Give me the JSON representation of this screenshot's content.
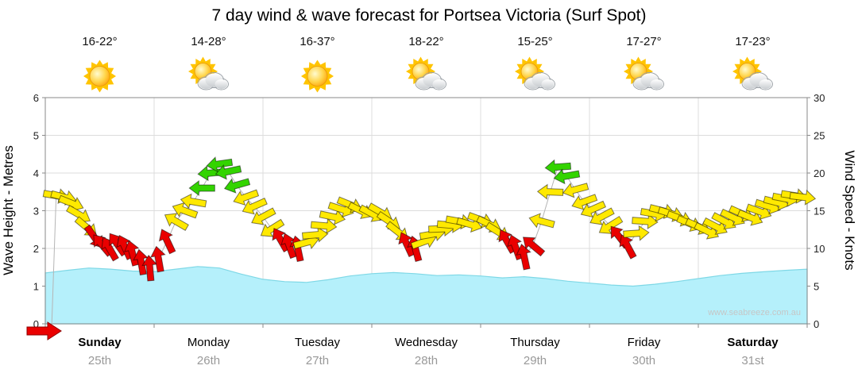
{
  "title": "7 day wind & wave forecast for Portsea Victoria (Surf Spot)",
  "watermark": "www.seabreeze.com.au",
  "chart_data": {
    "type": "area+wind-arrows",
    "y_left": {
      "label": "Wave Height - Metres",
      "min": 0,
      "max": 6,
      "ticks": [
        0,
        1,
        2,
        3,
        4,
        5,
        6
      ]
    },
    "y_right": {
      "label": "Wind Speed - Knots",
      "min": 0,
      "max": 30,
      "ticks": [
        0,
        5,
        10,
        15,
        20,
        25,
        30
      ]
    },
    "days": [
      {
        "name": "Sunday",
        "date": "25th",
        "temp": "16-22°",
        "icon": "sunny",
        "weekend": true
      },
      {
        "name": "Monday",
        "date": "26th",
        "temp": "14-28°",
        "icon": "partly-cloudy",
        "weekend": false
      },
      {
        "name": "Tuesday",
        "date": "27th",
        "temp": "16-37°",
        "icon": "sunny",
        "weekend": false
      },
      {
        "name": "Wednesday",
        "date": "28th",
        "temp": "18-22°",
        "icon": "partly-cloudy",
        "weekend": false
      },
      {
        "name": "Thursday",
        "date": "29th",
        "temp": "15-25°",
        "icon": "partly-cloudy",
        "weekend": false
      },
      {
        "name": "Friday",
        "date": "30th",
        "temp": "17-27°",
        "icon": "partly-cloudy",
        "weekend": false
      },
      {
        "name": "Saturday",
        "date": "31st",
        "temp": "17-23°",
        "icon": "partly-cloudy",
        "weekend": true
      }
    ],
    "wave_height_m": {
      "x_days": [
        0,
        0.2,
        0.4,
        0.6,
        0.8,
        1.0,
        1.2,
        1.4,
        1.6,
        1.8,
        2.0,
        2.2,
        2.4,
        2.6,
        2.8,
        3.0,
        3.2,
        3.4,
        3.6,
        3.8,
        4.0,
        4.2,
        4.4,
        4.6,
        4.8,
        5.0,
        5.2,
        5.4,
        5.6,
        5.8,
        6.0,
        6.2,
        6.4,
        6.6,
        6.8,
        7.0
      ],
      "y_m": [
        1.35,
        1.42,
        1.48,
        1.45,
        1.4,
        1.38,
        1.45,
        1.52,
        1.48,
        1.32,
        1.18,
        1.12,
        1.1,
        1.17,
        1.27,
        1.33,
        1.36,
        1.33,
        1.28,
        1.3,
        1.27,
        1.22,
        1.25,
        1.2,
        1.13,
        1.08,
        1.03,
        1.0,
        1.05,
        1.12,
        1.2,
        1.28,
        1.34,
        1.38,
        1.42,
        1.45
      ]
    },
    "wind_arrows": [
      {
        "d": 0.1,
        "kn": 17.0,
        "dir": 100,
        "c": "yellow"
      },
      {
        "d": 0.17,
        "kn": 16.8,
        "dir": 105,
        "c": "yellow"
      },
      {
        "d": 0.24,
        "kn": 16.0,
        "dir": 112,
        "c": "yellow"
      },
      {
        "d": 0.31,
        "kn": 14.5,
        "dir": 120,
        "c": "yellow"
      },
      {
        "d": 0.38,
        "kn": 12.8,
        "dir": 130,
        "c": "yellow"
      },
      {
        "d": 0.45,
        "kn": 11.5,
        "dir": 145,
        "c": "red"
      },
      {
        "d": 0.52,
        "kn": 10.5,
        "dir": 320,
        "c": "red"
      },
      {
        "d": 0.59,
        "kn": 10.0,
        "dir": 330,
        "c": "red"
      },
      {
        "d": 0.66,
        "kn": 10.6,
        "dir": 325,
        "c": "red"
      },
      {
        "d": 0.73,
        "kn": 10.2,
        "dir": 335,
        "c": "red"
      },
      {
        "d": 0.8,
        "kn": 9.4,
        "dir": 345,
        "c": "red"
      },
      {
        "d": 0.88,
        "kn": 8.2,
        "dir": 350,
        "c": "red"
      },
      {
        "d": 0.96,
        "kn": 7.4,
        "dir": 355,
        "c": "red"
      },
      {
        "d": 1.04,
        "kn": 8.6,
        "dir": 350,
        "c": "red"
      },
      {
        "d": 1.12,
        "kn": 11.0,
        "dir": 335,
        "c": "red"
      },
      {
        "d": 1.2,
        "kn": 13.6,
        "dir": 300,
        "c": "yellow"
      },
      {
        "d": 1.28,
        "kn": 15.0,
        "dir": 290,
        "c": "yellow"
      },
      {
        "d": 1.36,
        "kn": 16.2,
        "dir": 280,
        "c": "yellow"
      },
      {
        "d": 1.44,
        "kn": 18.0,
        "dir": 270,
        "c": "green"
      },
      {
        "d": 1.52,
        "kn": 20.0,
        "dir": 265,
        "c": "green"
      },
      {
        "d": 1.6,
        "kn": 21.2,
        "dir": 262,
        "c": "green"
      },
      {
        "d": 1.68,
        "kn": 20.2,
        "dir": 258,
        "c": "green"
      },
      {
        "d": 1.76,
        "kn": 18.4,
        "dir": 254,
        "c": "green"
      },
      {
        "d": 1.84,
        "kn": 16.8,
        "dir": 250,
        "c": "yellow"
      },
      {
        "d": 1.92,
        "kn": 15.6,
        "dir": 246,
        "c": "yellow"
      },
      {
        "d": 2.0,
        "kn": 14.2,
        "dir": 242,
        "c": "yellow"
      },
      {
        "d": 2.08,
        "kn": 12.6,
        "dir": 238,
        "c": "yellow"
      },
      {
        "d": 2.16,
        "kn": 11.2,
        "dir": 330,
        "c": "red"
      },
      {
        "d": 2.24,
        "kn": 10.4,
        "dir": 340,
        "c": "red"
      },
      {
        "d": 2.32,
        "kn": 10.0,
        "dir": 348,
        "c": "red"
      },
      {
        "d": 2.4,
        "kn": 10.8,
        "dir": 75,
        "c": "yellow"
      },
      {
        "d": 2.48,
        "kn": 11.8,
        "dir": 85,
        "c": "yellow"
      },
      {
        "d": 2.56,
        "kn": 13.0,
        "dir": 95,
        "c": "yellow"
      },
      {
        "d": 2.64,
        "kn": 14.2,
        "dir": 102,
        "c": "yellow"
      },
      {
        "d": 2.72,
        "kn": 15.2,
        "dir": 108,
        "c": "yellow"
      },
      {
        "d": 2.8,
        "kn": 15.8,
        "dir": 112,
        "c": "yellow"
      },
      {
        "d": 2.9,
        "kn": 15.0,
        "dir": 116,
        "c": "yellow"
      },
      {
        "d": 3.0,
        "kn": 14.6,
        "dir": 118,
        "c": "yellow"
      },
      {
        "d": 3.08,
        "kn": 14.8,
        "dir": 120,
        "c": "yellow"
      },
      {
        "d": 3.16,
        "kn": 13.6,
        "dir": 124,
        "c": "yellow"
      },
      {
        "d": 3.24,
        "kn": 12.2,
        "dir": 128,
        "c": "yellow"
      },
      {
        "d": 3.32,
        "kn": 10.6,
        "dir": 335,
        "c": "red"
      },
      {
        "d": 3.4,
        "kn": 10.0,
        "dir": 345,
        "c": "red"
      },
      {
        "d": 3.48,
        "kn": 10.9,
        "dir": 70,
        "c": "yellow"
      },
      {
        "d": 3.56,
        "kn": 11.9,
        "dir": 80,
        "c": "yellow"
      },
      {
        "d": 3.64,
        "kn": 12.6,
        "dir": 88,
        "c": "yellow"
      },
      {
        "d": 3.72,
        "kn": 13.1,
        "dir": 95,
        "c": "yellow"
      },
      {
        "d": 3.8,
        "kn": 13.6,
        "dir": 100,
        "c": "yellow"
      },
      {
        "d": 3.9,
        "kn": 13.2,
        "dir": 106,
        "c": "yellow"
      },
      {
        "d": 4.0,
        "kn": 13.8,
        "dir": 110,
        "c": "yellow"
      },
      {
        "d": 4.08,
        "kn": 13.2,
        "dir": 116,
        "c": "yellow"
      },
      {
        "d": 4.16,
        "kn": 12.2,
        "dir": 122,
        "c": "yellow"
      },
      {
        "d": 4.24,
        "kn": 11.0,
        "dir": 330,
        "c": "red"
      },
      {
        "d": 4.32,
        "kn": 10.2,
        "dir": 340,
        "c": "red"
      },
      {
        "d": 4.4,
        "kn": 8.9,
        "dir": 348,
        "c": "red"
      },
      {
        "d": 4.48,
        "kn": 10.4,
        "dir": 310,
        "c": "red"
      },
      {
        "d": 4.56,
        "kn": 13.6,
        "dir": 285,
        "c": "yellow"
      },
      {
        "d": 4.64,
        "kn": 17.5,
        "dir": 272,
        "c": "yellow"
      },
      {
        "d": 4.71,
        "kn": 20.8,
        "dir": 266,
        "c": "green"
      },
      {
        "d": 4.79,
        "kn": 19.6,
        "dir": 260,
        "c": "green"
      },
      {
        "d": 4.87,
        "kn": 17.8,
        "dir": 255,
        "c": "yellow"
      },
      {
        "d": 4.95,
        "kn": 16.2,
        "dir": 250,
        "c": "yellow"
      },
      {
        "d": 5.03,
        "kn": 15.2,
        "dir": 246,
        "c": "yellow"
      },
      {
        "d": 5.11,
        "kn": 14.2,
        "dir": 242,
        "c": "yellow"
      },
      {
        "d": 5.19,
        "kn": 13.0,
        "dir": 238,
        "c": "yellow"
      },
      {
        "d": 5.27,
        "kn": 11.6,
        "dir": 322,
        "c": "red"
      },
      {
        "d": 5.35,
        "kn": 10.3,
        "dir": 332,
        "c": "red"
      },
      {
        "d": 5.43,
        "kn": 12.0,
        "dir": 86,
        "c": "yellow"
      },
      {
        "d": 5.51,
        "kn": 13.6,
        "dir": 94,
        "c": "yellow"
      },
      {
        "d": 5.59,
        "kn": 14.6,
        "dir": 100,
        "c": "yellow"
      },
      {
        "d": 5.67,
        "kn": 15.0,
        "dir": 104,
        "c": "yellow"
      },
      {
        "d": 5.75,
        "kn": 14.6,
        "dir": 107,
        "c": "yellow"
      },
      {
        "d": 5.83,
        "kn": 14.0,
        "dir": 110,
        "c": "yellow"
      },
      {
        "d": 5.92,
        "kn": 13.3,
        "dir": 113,
        "c": "yellow"
      },
      {
        "d": 6.0,
        "kn": 12.9,
        "dir": 114,
        "c": "yellow"
      },
      {
        "d": 6.08,
        "kn": 12.3,
        "dir": 116,
        "c": "yellow"
      },
      {
        "d": 6.16,
        "kn": 12.9,
        "dir": 117,
        "c": "yellow"
      },
      {
        "d": 6.24,
        "kn": 13.6,
        "dir": 118,
        "c": "yellow"
      },
      {
        "d": 6.32,
        "kn": 14.1,
        "dir": 116,
        "c": "yellow"
      },
      {
        "d": 6.4,
        "kn": 14.6,
        "dir": 114,
        "c": "yellow"
      },
      {
        "d": 6.48,
        "kn": 14.1,
        "dir": 112,
        "c": "yellow"
      },
      {
        "d": 6.56,
        "kn": 14.9,
        "dir": 110,
        "c": "yellow"
      },
      {
        "d": 6.64,
        "kn": 15.6,
        "dir": 107,
        "c": "yellow"
      },
      {
        "d": 6.72,
        "kn": 16.1,
        "dir": 104,
        "c": "yellow"
      },
      {
        "d": 6.8,
        "kn": 16.6,
        "dir": 101,
        "c": "yellow"
      },
      {
        "d": 6.88,
        "kn": 17.0,
        "dir": 99,
        "c": "yellow"
      },
      {
        "d": 6.96,
        "kn": 16.8,
        "dir": 97,
        "c": "yellow"
      }
    ],
    "colors": {
      "yellow": "#ffe900",
      "red": "#ea0000",
      "green": "#33d400",
      "wave_fill": "#b5f0fb",
      "wave_stroke": "#7fd8e6",
      "grid": "#dcdcdc",
      "axis": "#8a8a8a"
    }
  }
}
